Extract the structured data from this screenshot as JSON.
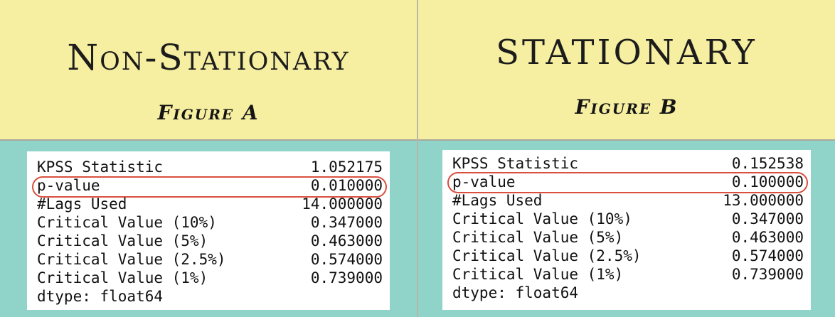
{
  "panels": [
    {
      "title": "Non-Stationary",
      "subtitle": "Figure A",
      "rows": [
        {
          "label": "KPSS Statistic",
          "value": "1.052175"
        },
        {
          "label": "p-value",
          "value": "0.010000"
        },
        {
          "label": "#Lags Used",
          "value": "14.000000"
        },
        {
          "label": "Critical Value (10%)",
          "value": "0.347000"
        },
        {
          "label": "Critical Value (5%)",
          "value": "0.463000"
        },
        {
          "label": "Critical Value (2.5%)",
          "value": "0.574000"
        },
        {
          "label": "Critical Value (1%)",
          "value": "0.739000"
        },
        {
          "label": "dtype: float64",
          "value": ""
        }
      ]
    },
    {
      "title": "STATIONARY",
      "subtitle": "Figure B",
      "rows": [
        {
          "label": "KPSS Statistic",
          "value": "0.152538"
        },
        {
          "label": "p-value",
          "value": "0.100000"
        },
        {
          "label": "#Lags Used",
          "value": "13.000000"
        },
        {
          "label": "Critical Value (10%)",
          "value": "0.347000"
        },
        {
          "label": "Critical Value (5%)",
          "value": "0.463000"
        },
        {
          "label": "Critical Value (2.5%)",
          "value": "0.574000"
        },
        {
          "label": "Critical Value (1%)",
          "value": "0.739000"
        },
        {
          "label": "dtype: float64",
          "value": ""
        }
      ]
    }
  ],
  "colors": {
    "header_background": "#f6efa1",
    "page_background": "#8fd3c9",
    "highlight_ring": "#d9503f"
  }
}
